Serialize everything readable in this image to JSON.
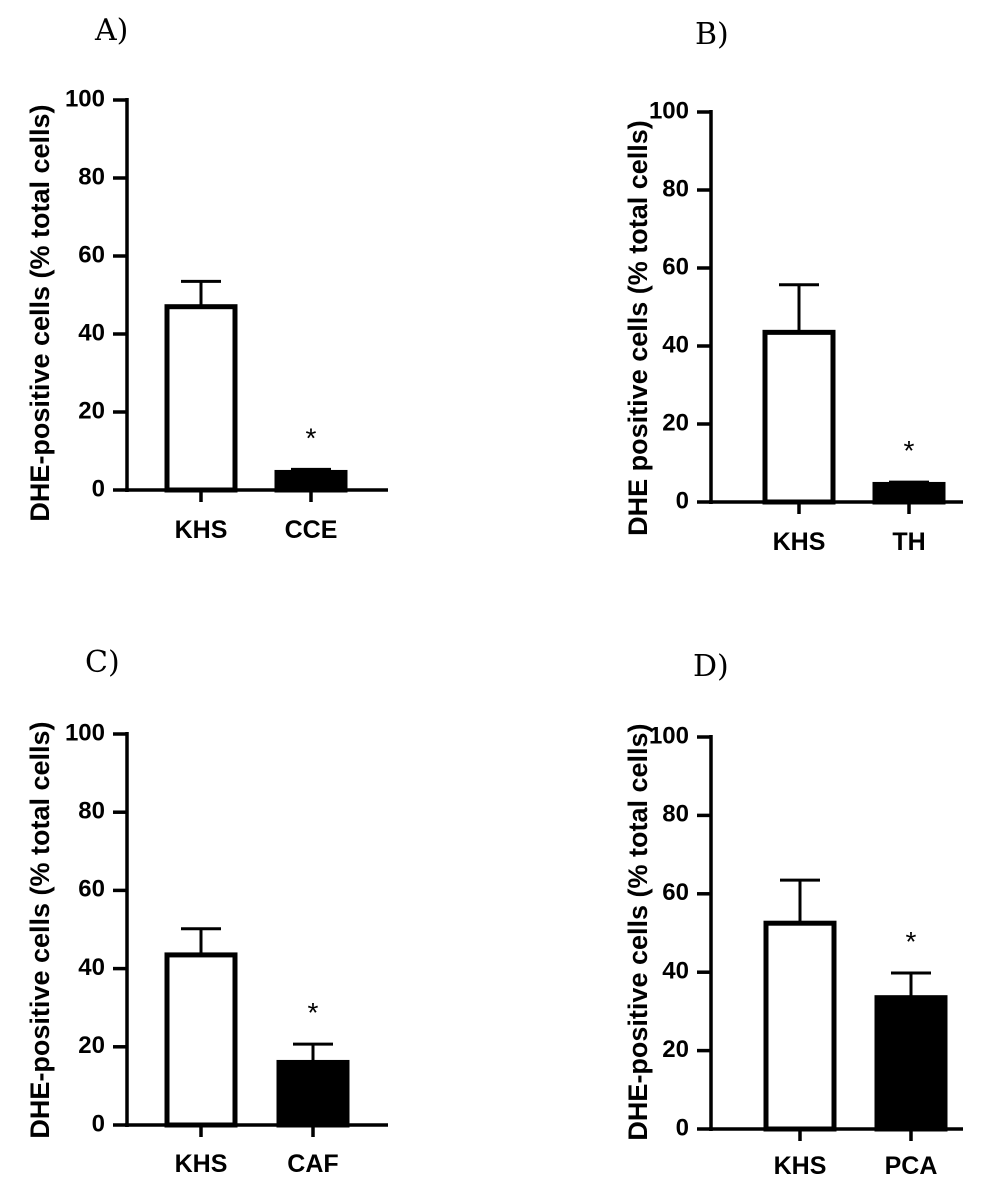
{
  "chart_data": [
    {
      "type": "bar",
      "panel": "A)",
      "ylabel": "DHE-positive cells (% total cells)",
      "ylim": [
        0,
        100
      ],
      "yticks": [
        "0",
        "20",
        "40",
        "60",
        "80",
        "100"
      ],
      "categories": [
        "KHS",
        "CCE"
      ],
      "values": [
        47,
        4.5
      ],
      "errors": [
        6.5,
        0.8
      ],
      "fills": [
        "open",
        "filled"
      ],
      "significance": [
        "",
        "*"
      ]
    },
    {
      "type": "bar",
      "panel": "B)",
      "ylabel": "DHE positive cells (% total cells)",
      "ylim": [
        0,
        100
      ],
      "yticks": [
        "0",
        "20",
        "40",
        "60",
        "80",
        "100"
      ],
      "categories": [
        "KHS",
        "TH"
      ],
      "values": [
        43.5,
        4.5
      ],
      "errors": [
        12.2,
        0.6
      ],
      "fills": [
        "open",
        "filled"
      ],
      "significance": [
        "",
        "*"
      ]
    },
    {
      "type": "bar",
      "panel": "C)",
      "ylabel": "DHE-positive cells (% total cells)",
      "ylim": [
        0,
        100
      ],
      "yticks": [
        "0",
        "20",
        "40",
        "60",
        "80",
        "100"
      ],
      "categories": [
        "KHS",
        "CAF"
      ],
      "values": [
        43.5,
        16
      ],
      "errors": [
        6.7,
        4.7
      ],
      "fills": [
        "open",
        "filled"
      ],
      "significance": [
        "",
        "*"
      ]
    },
    {
      "type": "bar",
      "panel": "D)",
      "ylabel": "DHE-positive cells (% total cells)",
      "ylim": [
        0,
        100
      ],
      "yticks": [
        "0",
        "20",
        "40",
        "60",
        "80",
        "100"
      ],
      "categories": [
        "KHS",
        "PCA"
      ],
      "values": [
        52.5,
        33.5
      ],
      "errors": [
        11,
        6.3
      ],
      "fills": [
        "open",
        "filled"
      ],
      "significance": [
        "",
        "*"
      ]
    }
  ]
}
